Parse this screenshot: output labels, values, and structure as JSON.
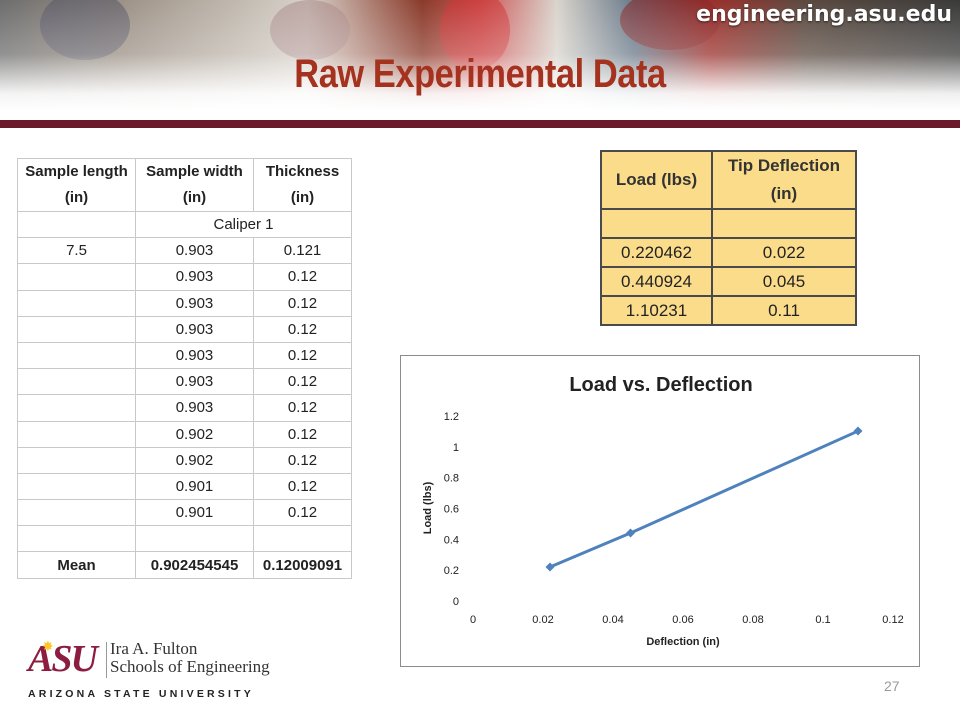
{
  "header": {
    "site_url": "engineering.asu.edu",
    "title": "Raw Experimental Data",
    "rule_color": "#6b1a2b"
  },
  "sample_table": {
    "headers": [
      "Sample length (in)",
      "Sample width (in)",
      "Thickness (in)"
    ],
    "subheader": "Caliper 1",
    "rows": [
      [
        "7.5",
        "0.903",
        "0.121"
      ],
      [
        "",
        "0.903",
        "0.12"
      ],
      [
        "",
        "0.903",
        "0.12"
      ],
      [
        "",
        "0.903",
        "0.12"
      ],
      [
        "",
        "0.903",
        "0.12"
      ],
      [
        "",
        "0.903",
        "0.12"
      ],
      [
        "",
        "0.903",
        "0.12"
      ],
      [
        "",
        "0.902",
        "0.12"
      ],
      [
        "",
        "0.902",
        "0.12"
      ],
      [
        "",
        "0.901",
        "0.12"
      ],
      [
        "",
        "0.901",
        "0.12"
      ],
      [
        "",
        "",
        ""
      ]
    ],
    "mean_row": [
      "Mean",
      "0.902454545",
      "0.12009091"
    ]
  },
  "load_table": {
    "headers": [
      "Load (lbs)",
      "Tip Deflection (in)"
    ],
    "rows": [
      [
        "",
        ""
      ],
      [
        "0.220462",
        "0.022"
      ],
      [
        "0.440924",
        "0.045"
      ],
      [
        "1.10231",
        "0.11"
      ]
    ],
    "fill_color": "#fbdc8a"
  },
  "chart_data": {
    "type": "line",
    "title": "Load vs. Deflection",
    "xlabel": "Deflection (in)",
    "ylabel": "Load (lbs)",
    "xlim": [
      0,
      0.12
    ],
    "ylim": [
      0,
      1.2
    ],
    "x_ticks": [
      "0",
      "0.02",
      "0.04",
      "0.06",
      "0.08",
      "0.1",
      "0.12"
    ],
    "y_ticks": [
      "0",
      "0.2",
      "0.4",
      "0.6",
      "0.8",
      "1",
      "1.2"
    ],
    "x_tick_values": [
      0,
      0.02,
      0.04,
      0.06,
      0.08,
      0.1,
      0.12
    ],
    "y_tick_values": [
      0,
      0.2,
      0.4,
      0.6,
      0.8,
      1,
      1.2
    ],
    "grid": false,
    "series": [
      {
        "x": [
          0.022,
          0.045,
          0.11
        ],
        "y": [
          0.220462,
          0.440924,
          1.10231
        ],
        "color": "#4f81bd",
        "marker": "diamond"
      }
    ]
  },
  "footer": {
    "logo_mark": "ASU",
    "school_line1": "Ira A. Fulton",
    "school_line2": "Schools of Engineering",
    "university": "ARIZONA STATE UNIVERSITY",
    "page_number": "27"
  }
}
